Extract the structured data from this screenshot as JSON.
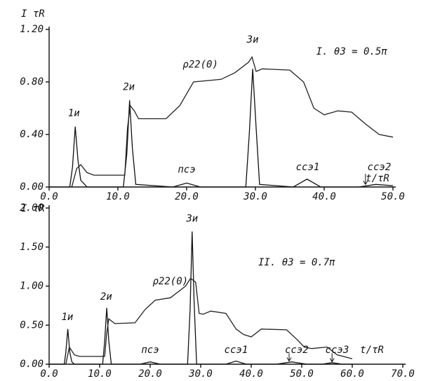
{
  "chart_data": [
    {
      "type": "line",
      "ylabel": "I τR",
      "xlabel": "t/τR",
      "grid": false,
      "xlim": [
        0,
        50
      ],
      "ylim": [
        0,
        1.2
      ],
      "xticks": [
        {
          "value": 0,
          "label": "0.0"
        },
        {
          "value": 10,
          "label": "10.0"
        },
        {
          "value": 20,
          "label": "20.0"
        },
        {
          "value": 30,
          "label": "30.0"
        },
        {
          "value": 40,
          "label": "40.0"
        },
        {
          "value": 50,
          "label": "50.0"
        }
      ],
      "yticks": [
        {
          "value": 0,
          "label": "0.00"
        },
        {
          "value": 0.4,
          "label": "0.40"
        },
        {
          "value": 0.8,
          "label": "0.80"
        },
        {
          "value": 1.2,
          "label": "1.20"
        }
      ],
      "series": [
        {
          "color": "#111111",
          "x": [
            0,
            3,
            3.4,
            3.8,
            4.2,
            4.6,
            5,
            5.5,
            10.8,
            11.3,
            11.7,
            12.1,
            12.6,
            18,
            20,
            22,
            28.6,
            29.1,
            29.6,
            30.1,
            30.6,
            35.5,
            37.5,
            39.5,
            45,
            47.5,
            50
          ],
          "values": [
            0,
            0,
            0.15,
            0.46,
            0.2,
            0.05,
            0.03,
            0,
            0,
            0.25,
            0.66,
            0.3,
            0.02,
            0,
            0.03,
            0,
            0,
            0.4,
            0.9,
            0.45,
            0.02,
            0,
            0.06,
            0,
            0,
            0.02,
            0.01
          ]
        },
        {
          "name": "ρ22(0)",
          "color": "#222222",
          "x": [
            3.3,
            4,
            4.6,
            5.5,
            6.5,
            11,
            11.4,
            11.8,
            12.4,
            13,
            17,
            19,
            21,
            25,
            27,
            29,
            29.5,
            30.1,
            31,
            35,
            37,
            38.5,
            40,
            42,
            44,
            46,
            48,
            50
          ],
          "values": [
            0,
            0.14,
            0.17,
            0.11,
            0.09,
            0.09,
            0.45,
            0.62,
            0.58,
            0.52,
            0.52,
            0.62,
            0.8,
            0.82,
            0.87,
            0.95,
            0.99,
            0.88,
            0.9,
            0.89,
            0.8,
            0.6,
            0.55,
            0.58,
            0.57,
            0.48,
            0.4,
            0.38
          ]
        }
      ],
      "annotations": [
        "1и",
        "2и",
        "3и",
        "пcэ",
        "ccэ1",
        "ccэ2",
        "I. θ3 = 0.5π"
      ]
    },
    {
      "type": "line",
      "ylabel": "I τR",
      "xlabel": "t/τR",
      "grid": false,
      "xlim": [
        0,
        70
      ],
      "ylim": [
        0,
        2
      ],
      "xticks": [
        {
          "value": 0,
          "label": "0.0"
        },
        {
          "value": 10,
          "label": "10.0"
        },
        {
          "value": 20,
          "label": "20.0"
        },
        {
          "value": 30,
          "label": "30.0"
        },
        {
          "value": 40,
          "label": "40.0"
        },
        {
          "value": 50,
          "label": "50.0"
        },
        {
          "value": 60,
          "label": "60.0"
        },
        {
          "value": 70,
          "label": "70.0"
        }
      ],
      "yticks": [
        {
          "value": 0,
          "label": "0.00"
        },
        {
          "value": 0.5,
          "label": "0.50"
        },
        {
          "value": 1,
          "label": "1.00"
        },
        {
          "value": 1.5,
          "label": "1.50"
        },
        {
          "value": 2,
          "label": "2.00"
        }
      ],
      "series": [
        {
          "color": "#111111",
          "x": [
            0,
            3,
            3.3,
            3.7,
            4.1,
            4.5,
            5,
            10.6,
            11,
            11.4,
            11.8,
            12.3,
            18,
            20,
            22,
            27.4,
            27.9,
            28.3,
            28.7,
            29.2,
            35,
            37,
            39,
            45,
            48,
            51,
            54,
            56,
            58,
            60
          ],
          "values": [
            0,
            0,
            0.15,
            0.45,
            0.15,
            0.03,
            0,
            0,
            0.3,
            0.72,
            0.3,
            0,
            0,
            0.03,
            0,
            0,
            0.7,
            1.7,
            0.8,
            0,
            0,
            0.04,
            0,
            0,
            0.03,
            0,
            0,
            0.02,
            0,
            0
          ]
        },
        {
          "name": "ρ22(0)",
          "color": "#222222",
          "x": [
            3.3,
            4,
            5,
            6,
            11,
            11.4,
            11.8,
            13,
            17,
            19,
            21,
            24,
            27,
            28,
            29,
            29.7,
            30.5,
            32,
            35,
            37,
            38.5,
            40,
            42,
            47,
            49,
            50.5,
            52,
            55,
            57,
            60
          ],
          "values": [
            0,
            0.22,
            0.12,
            0.1,
            0.1,
            0.4,
            0.58,
            0.52,
            0.53,
            0.7,
            0.82,
            0.85,
            1.0,
            1.1,
            1.05,
            0.65,
            0.64,
            0.68,
            0.65,
            0.45,
            0.38,
            0.35,
            0.45,
            0.44,
            0.32,
            0.22,
            0.2,
            0.22,
            0.12,
            0.07
          ]
        }
      ],
      "annotations": [
        "1и",
        "2и",
        "3и",
        "пcэ",
        "ccэ1",
        "ccэ2",
        "ccэ3",
        "II. θ3 = 0.7π"
      ]
    }
  ]
}
